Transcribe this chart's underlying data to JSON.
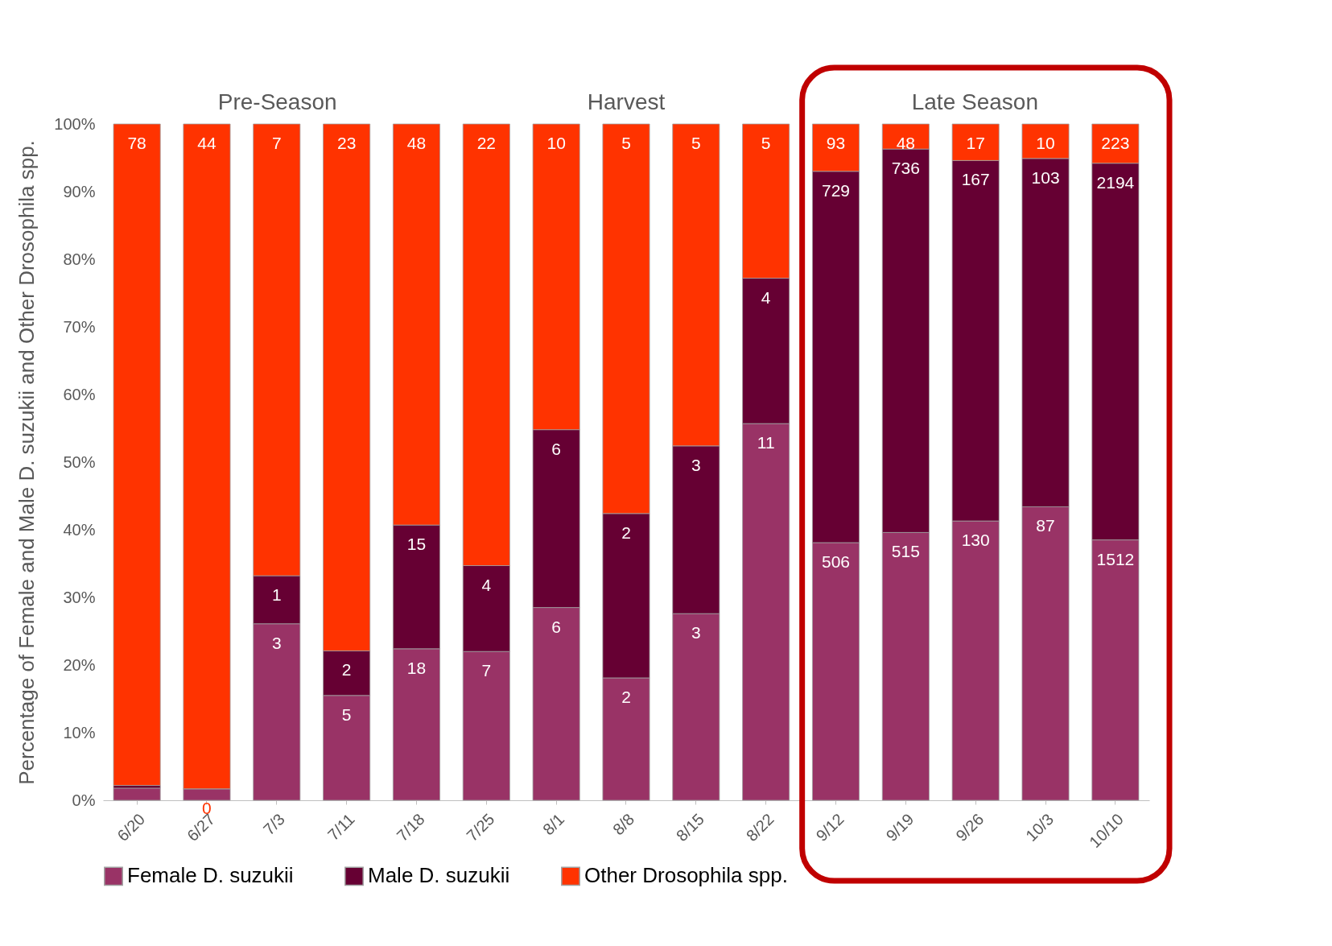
{
  "chart_data": {
    "type": "bar",
    "stacked": true,
    "ylabel": "Percentage of Female and Male D. suzukii and Other Drosophila spp.",
    "annotations": [
      "Pre-Season",
      "Harvest",
      "Late Season",
      {
        "text": "0",
        "x": "6/27",
        "y": 1.7
      },
      {
        "text": "3",
        "x": "7/3",
        "y": 26.1
      },
      {
        "text": "5",
        "x": "7/11",
        "y": 15.5
      },
      {
        "text": "18",
        "x": "7/18",
        "y": 22.4
      },
      {
        "text": "7",
        "x": "7/25",
        "y": 22.0
      },
      {
        "text": "6",
        "x": "8/1",
        "y": 28.5
      },
      {
        "text": "2",
        "x": "8/8",
        "y": 18.1
      },
      {
        "text": "3",
        "x": "8/15",
        "y": 27.6
      },
      {
        "text": "11",
        "x": "8/22",
        "y": 55.7
      },
      {
        "text": "506",
        "x": "9/12",
        "y": 38.1
      },
      {
        "text": "515",
        "x": "9/19",
        "y": 39.6
      },
      {
        "text": "130",
        "x": "9/26",
        "y": 41.3
      },
      {
        "text": "87",
        "x": "10/3",
        "y": 43.4
      },
      {
        "text": "1512",
        "x": "10/10",
        "y": 38.5
      },
      {
        "text": "1",
        "x": "7/3",
        "y": 33.2
      },
      {
        "text": "2",
        "x": "7/11",
        "y": 22.1
      },
      {
        "text": "15",
        "x": "7/18",
        "y": 40.7
      },
      {
        "text": "4",
        "x": "7/25",
        "y": 34.7
      },
      {
        "text": "6",
        "x": "8/1",
        "y": 54.8
      },
      {
        "text": "2",
        "x": "8/8",
        "y": 42.4
      },
      {
        "text": "3",
        "x": "8/15",
        "y": 52.4
      },
      {
        "text": "4",
        "x": "8/22",
        "y": 77.2
      },
      {
        "text": "729",
        "x": "9/12",
        "y": 93.0
      },
      {
        "text": "736",
        "x": "9/19",
        "y": 96.3
      },
      {
        "text": "167",
        "x": "9/26",
        "y": 94.6
      },
      {
        "text": "103",
        "x": "10/3",
        "y": 94.9
      },
      {
        "text": "2194",
        "x": "10/10",
        "y": 94.2
      },
      {
        "text": "78",
        "x": "6/20",
        "y": 100
      },
      {
        "text": "44",
        "x": "6/27",
        "y": 100
      },
      {
        "text": "7",
        "x": "7/3",
        "y": 100
      },
      {
        "text": "23",
        "x": "7/11",
        "y": 100
      },
      {
        "text": "48",
        "x": "7/18",
        "y": 100
      },
      {
        "text": "22",
        "x": "7/25",
        "y": 100
      },
      {
        "text": "10",
        "x": "8/1",
        "y": 100
      },
      {
        "text": "5",
        "x": "8/8",
        "y": 100
      },
      {
        "text": "5",
        "x": "8/15",
        "y": 100
      },
      {
        "text": "5",
        "x": "8/22",
        "y": 100
      },
      {
        "text": "93",
        "x": "9/12",
        "y": 100
      },
      {
        "text": "48",
        "x": "9/19",
        "y": 100
      },
      {
        "text": "17",
        "x": "9/26",
        "y": 100
      },
      {
        "text": "10",
        "x": "10/3",
        "y": 100
      },
      {
        "text": "223",
        "x": "10/10",
        "y": 100
      }
    ],
    "categories": [
      "6/20",
      "6/27",
      "7/3",
      "7/11",
      "7/18",
      "7/25",
      "8/1",
      "8/8",
      "8/15",
      "8/22",
      "9/12",
      "9/19",
      "9/26",
      "10/3",
      "10/10"
    ],
    "series": [
      {
        "name": "Female D. suzukii",
        "color": "#993366",
        "values": [
          1.8,
          1.7,
          26.1,
          15.5,
          22.4,
          22.0,
          28.5,
          18.1,
          27.6,
          55.7,
          38.1,
          39.6,
          41.3,
          43.4,
          38.5
        ]
      },
      {
        "name": "Male D. suzukii",
        "color": "#660033",
        "values": [
          0.4,
          0,
          7.1,
          6.6,
          18.3,
          12.7,
          26.3,
          24.3,
          24.8,
          21.5,
          54.9,
          56.7,
          53.3,
          51.5,
          55.7
        ]
      },
      {
        "name": "Other Drosophila spp.",
        "color": "#ff3300",
        "values": [
          97.8,
          98.3,
          66.8,
          77.9,
          59.3,
          65.3,
          45.2,
          57.6,
          47.6,
          22.8,
          7.0,
          3.7,
          5.4,
          5.1,
          5.8
        ]
      }
    ],
    "ylim": [
      0,
      100
    ],
    "yticks": [
      {
        "value": 0,
        "label": "0%"
      },
      {
        "value": 10,
        "label": "10%"
      },
      {
        "value": 20,
        "label": "20%"
      },
      {
        "value": 30,
        "label": "30%"
      },
      {
        "value": 40,
        "label": "40%"
      },
      {
        "value": 50,
        "label": "50%"
      },
      {
        "value": 60,
        "label": "60%"
      },
      {
        "value": 70,
        "label": "70%"
      },
      {
        "value": 80,
        "label": "80%"
      },
      {
        "value": 90,
        "label": "90%"
      },
      {
        "value": 100,
        "label": "100%"
      }
    ],
    "grid": false,
    "legend": "bottom"
  }
}
